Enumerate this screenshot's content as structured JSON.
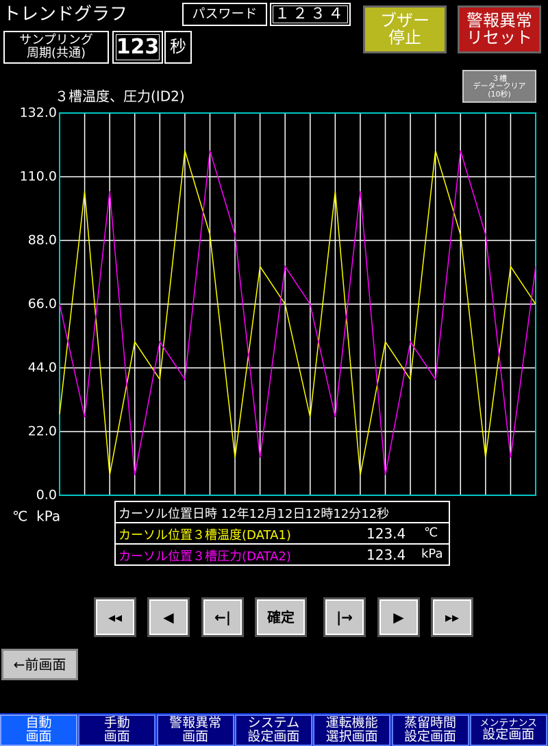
{
  "header": {
    "title": "トレンドグラフ",
    "password_label": "パスワード",
    "password_value": "１２３４",
    "sampling_label": [
      "サンプリング",
      "周期(共通)"
    ],
    "sampling_value": "123",
    "sampling_unit": "秒"
  },
  "buttons": {
    "buzzer_stop": [
      "ブザー",
      "停止"
    ],
    "alarm_reset": [
      "警報異常",
      "リセット"
    ],
    "data_clear": [
      "３槽",
      "データークリア",
      "(10秒)"
    ],
    "prev": "←前画面"
  },
  "cursor_info": {
    "datetime_label": "カーソル位置日時",
    "datetime": "12年12月12日12時12分12秒",
    "temp_label": "カーソル位置３槽温度(DATA1)",
    "temp_value": "123.4",
    "temp_unit": "℃",
    "pressure_label": "カーソル位置３槽圧力(DATA2)",
    "pressure_value": "123.4",
    "pressure_unit": "kPa"
  },
  "nav_buttons": [
    "◂◂",
    "◀",
    "←|",
    "確定",
    "|→",
    "▶",
    "▸▸"
  ],
  "tabs": [
    [
      "自動",
      "画面"
    ],
    [
      "手動",
      "画面"
    ],
    [
      "警報異常",
      "画面"
    ],
    [
      "システム",
      "設定画面"
    ],
    [
      "運転機能",
      "選択画面"
    ],
    [
      "蒸留時間",
      "設定画面"
    ],
    [
      "メンテナンス",
      "設定画面"
    ]
  ],
  "chart_data": {
    "type": "line",
    "title": "３槽温度、圧力(ID2)",
    "y_label": "℃  kPa",
    "categories": [
      null,
      null,
      null,
      null,
      null,
      null,
      null,
      null,
      null,
      null,
      null,
      null,
      null,
      null,
      null,
      null,
      null,
      null,
      null,
      null
    ],
    "series": [
      {
        "name": "カーソル位置３槽温度(DATA1)",
        "color": "#ffff00",
        "values": [
          28,
          105,
          7,
          53,
          40,
          119,
          90,
          13,
          79,
          66,
          27,
          105,
          7,
          53,
          40,
          119,
          90,
          13,
          79,
          66
        ]
      },
      {
        "name": "カーソル位置３槽圧力(DATA2)",
        "color": "#ff00ff",
        "values": [
          66,
          27,
          105,
          7,
          53,
          40,
          119,
          90,
          13,
          79,
          66,
          27,
          105,
          7,
          53,
          40,
          119,
          90,
          13,
          79
        ]
      }
    ],
    "ylim": [
      0,
      132
    ],
    "yticks": [
      {
        "value": 0,
        "label": "0.0"
      },
      {
        "value": 22,
        "label": "22.0"
      },
      {
        "value": 44,
        "label": "44.0"
      },
      {
        "value": 66,
        "label": "66.0"
      },
      {
        "value": 88,
        "label": "88.0"
      },
      {
        "value": 110,
        "label": "110.0"
      },
      {
        "value": 132,
        "label": "132.0"
      }
    ],
    "grid": true,
    "frame_color": "#00c8c8"
  }
}
